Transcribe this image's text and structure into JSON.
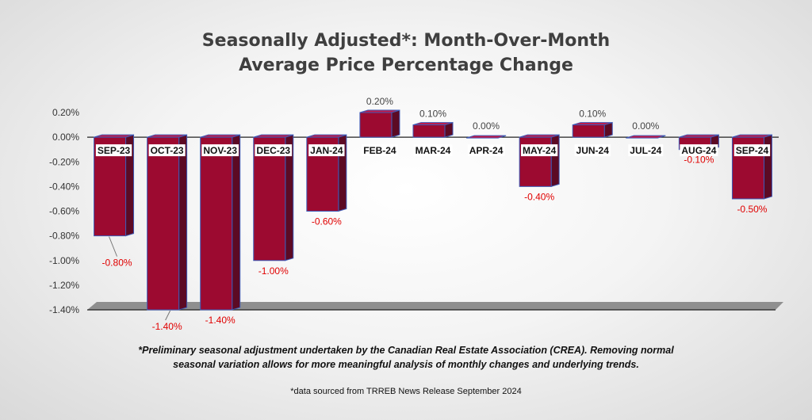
{
  "chart_data": {
    "type": "bar",
    "title_lines": [
      "Seasonally Adjusted*:  Month-Over-Month",
      "Average Price Percentage Change"
    ],
    "categories": [
      "SEP-23",
      "OCT-23",
      "NOV-23",
      "DEC-23",
      "JAN-24",
      "FEB-24",
      "MAR-24",
      "APR-24",
      "MAY-24",
      "JUN-24",
      "JUL-24",
      "AUG-24",
      "SEP-24"
    ],
    "values": [
      -0.8,
      -1.4,
      -1.4,
      -1.0,
      -0.6,
      0.2,
      0.1,
      0.0,
      -0.4,
      0.1,
      0.0,
      -0.1,
      -0.5
    ],
    "data_labels": [
      "-0.80%",
      "-1.40%",
      "-1.40%",
      "-1.00%",
      "-0.60%",
      "0.20%",
      "0.10%",
      "0.00%",
      "-0.40%",
      "0.10%",
      "0.00%",
      "-0.10%",
      "-0.50%"
    ],
    "ylim": [
      -1.4,
      0.2
    ],
    "yticks": [
      0.2,
      0.0,
      -0.2,
      -0.4,
      -0.6,
      -0.8,
      -1.0,
      -1.2,
      -1.4
    ],
    "ytick_labels": [
      "0.20%",
      "0.00%",
      "-0.20%",
      "-0.40%",
      "-0.60%",
      "-0.80%",
      "-1.00%",
      "-1.20%",
      "-1.40%"
    ],
    "xlabel": "",
    "ylabel": "",
    "grid": false,
    "legend": "none",
    "colors": {
      "bar_front": "#9c0a30",
      "bar_side": "#5c0a24",
      "bar_top": "#c41745",
      "bar_edge": "#3d5bb8",
      "negative_label": "#e00000",
      "positive_label": "#444444"
    }
  },
  "footnote": {
    "line1": "*Preliminary seasonal adjustment undertaken by the Canadian Real Estate Association (CREA).  Removing normal",
    "line2": "seasonal variation allows for more meaningful analysis of monthly changes and underlying trends."
  },
  "source": "*data sourced from TRREB News Release September 2024"
}
